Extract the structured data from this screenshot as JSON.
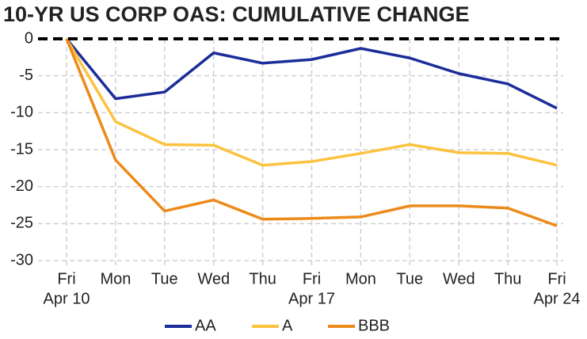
{
  "chart_data": {
    "type": "line",
    "title": "10-YR US CORP OAS: CUMULATIVE CHANGE",
    "categories": [
      [
        "Fri",
        "Apr 10"
      ],
      [
        "Mon"
      ],
      [
        "Tue"
      ],
      [
        "Wed"
      ],
      [
        "Thu"
      ],
      [
        "Fri",
        "Apr 17"
      ],
      [
        "Mon"
      ],
      [
        "Tue"
      ],
      [
        "Wed"
      ],
      [
        "Thu"
      ],
      [
        "Fri",
        "Apr 24"
      ]
    ],
    "series": [
      {
        "name": "AA",
        "color": "#1b2d98",
        "values": [
          0,
          -8.1,
          -7.2,
          -1.9,
          -3.3,
          -2.8,
          -1.3,
          -2.6,
          -4.7,
          -6.1,
          -9.4
        ]
      },
      {
        "name": "A",
        "color": "#fdc23e",
        "values": [
          0,
          -11.2,
          -14.3,
          -14.4,
          -17.1,
          -16.6,
          -15.5,
          -14.3,
          -15.4,
          -15.5,
          -17.1
        ]
      },
      {
        "name": "BBB",
        "color": "#ec8a1a",
        "values": [
          0,
          -16.4,
          -23.3,
          -21.8,
          -24.4,
          -24.3,
          -24.1,
          -22.6,
          -22.6,
          -22.9,
          -25.3
        ]
      }
    ],
    "ylim": [
      -30,
      0
    ],
    "yticks": [
      0,
      -5,
      -10,
      -15,
      -20,
      -25,
      -30
    ],
    "grid": true,
    "legend": "bottom"
  }
}
